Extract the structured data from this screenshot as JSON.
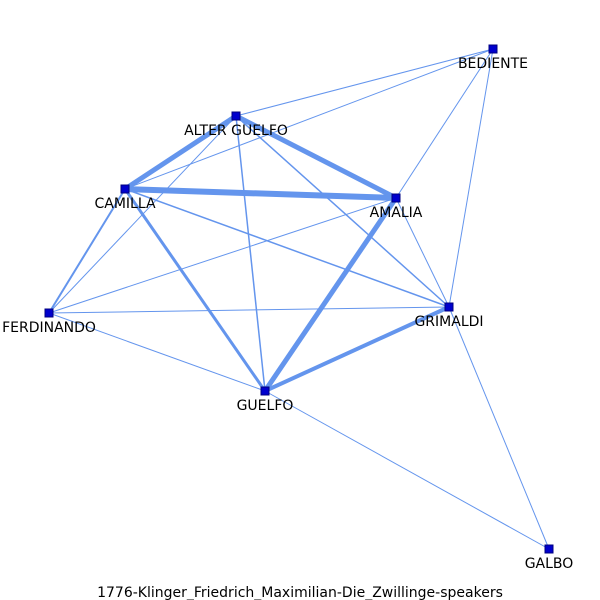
{
  "caption": "1776-Klinger_Friedrich_Maximilian-Die_Zwillinge-speakers",
  "colors": {
    "edge": "#6495ED",
    "node_fill": "#0000CD",
    "node_stroke": "#000080",
    "text": "#000000"
  },
  "nodes": [
    {
      "id": "BEDIENTE",
      "label": "BEDIENTE"
    },
    {
      "id": "ALTER GUELFO",
      "label": "ALTER GUELFO"
    },
    {
      "id": "CAMILLA",
      "label": "CAMILLA"
    },
    {
      "id": "AMALIA",
      "label": "AMALIA"
    },
    {
      "id": "FERDINANDO",
      "label": "FERDINANDO"
    },
    {
      "id": "GRIMALDI",
      "label": "GRIMALDI"
    },
    {
      "id": "GUELFO",
      "label": "GUELFO"
    },
    {
      "id": "GALBO",
      "label": "GALBO"
    }
  ],
  "edges": [
    {
      "source": "CAMILLA",
      "target": "AMALIA",
      "weight": 6
    },
    {
      "source": "ALTER GUELFO",
      "target": "CAMILLA",
      "weight": 5
    },
    {
      "source": "ALTER GUELFO",
      "target": "AMALIA",
      "weight": 5
    },
    {
      "source": "AMALIA",
      "target": "GUELFO",
      "weight": 5
    },
    {
      "source": "GUELFO",
      "target": "GRIMALDI",
      "weight": 4
    },
    {
      "source": "CAMILLA",
      "target": "GUELFO",
      "weight": 3
    },
    {
      "source": "CAMILLA",
      "target": "FERDINANDO",
      "weight": 2
    },
    {
      "source": "ALTER GUELFO",
      "target": "GUELFO",
      "weight": 1.5
    },
    {
      "source": "ALTER GUELFO",
      "target": "GRIMALDI",
      "weight": 1.5
    },
    {
      "source": "CAMILLA",
      "target": "GRIMALDI",
      "weight": 1.5
    },
    {
      "source": "ALTER GUELFO",
      "target": "FERDINANDO",
      "weight": 1
    },
    {
      "source": "ALTER GUELFO",
      "target": "BEDIENTE",
      "weight": 1
    },
    {
      "source": "CAMILLA",
      "target": "BEDIENTE",
      "weight": 1
    },
    {
      "source": "BEDIENTE",
      "target": "AMALIA",
      "weight": 1
    },
    {
      "source": "BEDIENTE",
      "target": "GRIMALDI",
      "weight": 1
    },
    {
      "source": "AMALIA",
      "target": "GRIMALDI",
      "weight": 1
    },
    {
      "source": "AMALIA",
      "target": "FERDINANDO",
      "weight": 1
    },
    {
      "source": "FERDINANDO",
      "target": "GRIMALDI",
      "weight": 1
    },
    {
      "source": "FERDINANDO",
      "target": "GUELFO",
      "weight": 1
    },
    {
      "source": "GRIMALDI",
      "target": "GALBO",
      "weight": 1
    },
    {
      "source": "GUELFO",
      "target": "GALBO",
      "weight": 1
    }
  ]
}
